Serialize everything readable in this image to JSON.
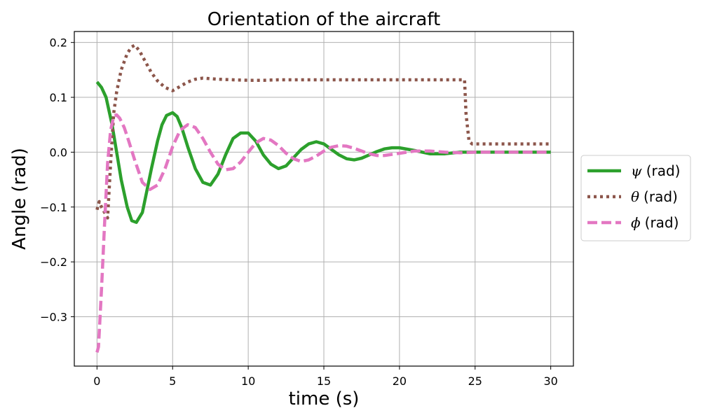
{
  "chart_data": {
    "type": "line",
    "title": "Orientation of the aircraft",
    "xlabel": "time (s)",
    "ylabel": "Angle (rad)",
    "xlim": [
      -1.5,
      31.5
    ],
    "ylim": [
      -0.39,
      0.22
    ],
    "xticks": [
      0,
      5,
      10,
      15,
      20,
      25,
      30
    ],
    "yticks": [
      -0.3,
      -0.2,
      -0.1,
      0.0,
      0.1,
      0.2
    ],
    "ytick_labels": [
      "−0.3",
      "−0.2",
      "−0.1",
      "0.0",
      "0.1",
      "0.2"
    ],
    "grid": true,
    "legend_position": "outside-right",
    "series": [
      {
        "name": "(rad)",
        "symbol": "ψ",
        "color": "#2ca02c",
        "style": "solid",
        "x": [
          0,
          0.3,
          0.6,
          1.0,
          1.3,
          1.6,
          2.0,
          2.3,
          2.6,
          3.0,
          3.3,
          3.6,
          4.0,
          4.3,
          4.6,
          5.0,
          5.3,
          5.6,
          6.0,
          6.5,
          7.0,
          7.5,
          8.0,
          8.5,
          9.0,
          9.5,
          10.0,
          10.5,
          11.0,
          11.5,
          12.0,
          12.5,
          13.0,
          13.5,
          14.0,
          14.5,
          15.0,
          15.5,
          16.0,
          16.5,
          17.0,
          17.5,
          18.0,
          18.5,
          19.0,
          19.5,
          20.0,
          21.0,
          22.0,
          23.0,
          24.0,
          25.0,
          26.0,
          27.0,
          28.0,
          29.0,
          30.0
        ],
        "y": [
          0.128,
          0.118,
          0.1,
          0.05,
          0.0,
          -0.05,
          -0.1,
          -0.125,
          -0.128,
          -0.11,
          -0.07,
          -0.03,
          0.02,
          0.05,
          0.067,
          0.072,
          0.065,
          0.045,
          0.01,
          -0.03,
          -0.055,
          -0.06,
          -0.04,
          -0.005,
          0.025,
          0.035,
          0.035,
          0.02,
          -0.005,
          -0.022,
          -0.03,
          -0.025,
          -0.01,
          0.005,
          0.015,
          0.019,
          0.015,
          0.005,
          -0.005,
          -0.012,
          -0.014,
          -0.011,
          -0.005,
          0.001,
          0.006,
          0.008,
          0.008,
          0.003,
          -0.003,
          -0.003,
          0.0,
          0.0,
          0.0,
          0.0,
          0.0,
          0.0,
          0.0
        ]
      },
      {
        "name": "(rad)",
        "symbol": "θ",
        "color": "#8c564b",
        "style": "dotted",
        "x": [
          0,
          0.15,
          0.3,
          0.5,
          0.7,
          0.9,
          1.1,
          1.3,
          1.6,
          2.0,
          2.3,
          2.5,
          2.8,
          3.2,
          3.6,
          4.0,
          4.5,
          5.0,
          5.5,
          6.0,
          6.5,
          7.0,
          7.5,
          8.0,
          9.0,
          10.0,
          11.0,
          12.0,
          14.0,
          16.0,
          18.0,
          20.0,
          22.0,
          24.0,
          24.3,
          24.4,
          24.6,
          24.8,
          25.0,
          26.0,
          27.0,
          28.0,
          29.0,
          30.0
        ],
        "y": [
          -0.105,
          -0.09,
          -0.1,
          -0.11,
          -0.12,
          -0.02,
          0.07,
          0.11,
          0.15,
          0.18,
          0.192,
          0.195,
          0.185,
          0.165,
          0.145,
          0.13,
          0.118,
          0.112,
          0.12,
          0.128,
          0.133,
          0.135,
          0.134,
          0.133,
          0.132,
          0.131,
          0.131,
          0.132,
          0.132,
          0.132,
          0.132,
          0.132,
          0.132,
          0.132,
          0.132,
          0.07,
          0.02,
          0.015,
          0.015,
          0.015,
          0.015,
          0.015,
          0.015,
          0.015
        ]
      },
      {
        "name": "(rad)",
        "symbol": "ϕ",
        "color": "#e377c2",
        "style": "dashed",
        "x": [
          0,
          0.1,
          0.3,
          0.5,
          0.7,
          0.9,
          1.1,
          1.3,
          1.5,
          1.8,
          2.1,
          2.5,
          3.0,
          3.5,
          4.0,
          4.5,
          5.0,
          5.5,
          6.0,
          6.5,
          7.0,
          7.5,
          8.0,
          8.5,
          9.0,
          9.5,
          10.0,
          10.5,
          11.0,
          11.5,
          12.0,
          12.5,
          13.0,
          13.5,
          14.0,
          14.5,
          15.0,
          15.5,
          16.0,
          16.5,
          17.0,
          17.5,
          18.0,
          18.5,
          19.0,
          20.0,
          21.0,
          22.0,
          23.0,
          24.0,
          25.0,
          26.0,
          27.0,
          28.0,
          29.0,
          30.0
        ],
        "y": [
          -0.365,
          -0.355,
          -0.25,
          -0.13,
          -0.02,
          0.04,
          0.065,
          0.068,
          0.062,
          0.045,
          0.02,
          -0.015,
          -0.055,
          -0.068,
          -0.06,
          -0.03,
          0.01,
          0.04,
          0.05,
          0.045,
          0.025,
          0.0,
          -0.022,
          -0.032,
          -0.03,
          -0.018,
          0.0,
          0.017,
          0.025,
          0.022,
          0.012,
          -0.002,
          -0.012,
          -0.017,
          -0.014,
          -0.007,
          0.002,
          0.009,
          0.012,
          0.011,
          0.007,
          0.002,
          -0.003,
          -0.006,
          -0.006,
          -0.002,
          0.002,
          0.002,
          0.0,
          -0.001,
          0.0,
          0.0,
          0.0,
          0.0,
          0.0,
          0.0
        ]
      }
    ]
  }
}
